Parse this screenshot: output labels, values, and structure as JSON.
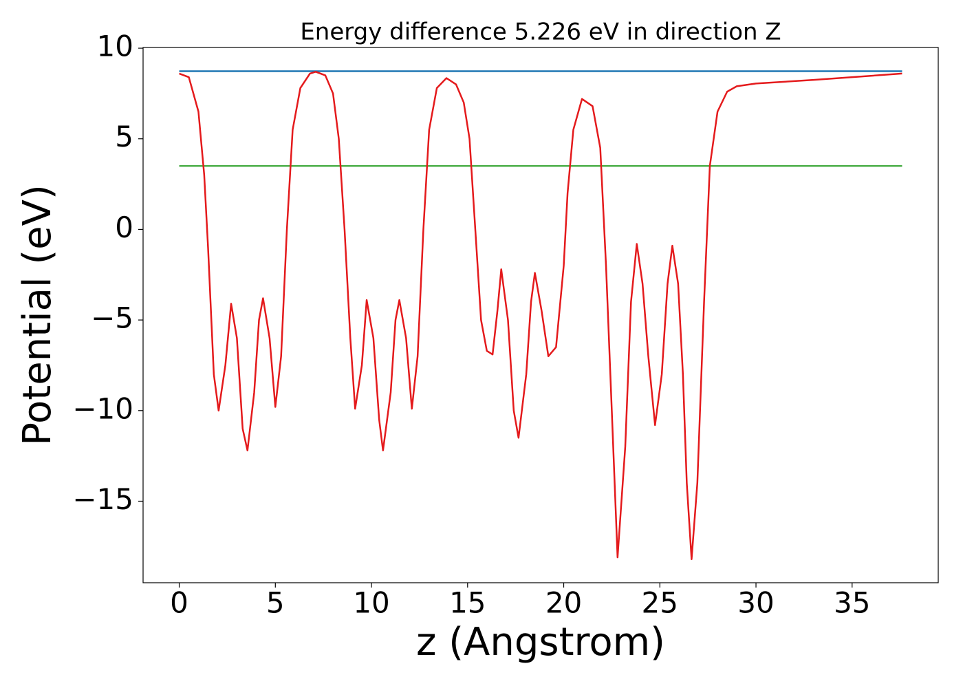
{
  "chart_data": {
    "type": "line",
    "title": "Energy difference 5.226 eV in direction Z",
    "xlabel": "z (Angstrom)",
    "ylabel": "Potential (eV)",
    "xlim": [
      -1.88,
      39.48
    ],
    "ylim": [
      -19.5,
      10.04
    ],
    "xticks": [
      0,
      5,
      10,
      15,
      20,
      25,
      30,
      35
    ],
    "yticks": [
      {
        "value": -15,
        "label": "−15"
      },
      {
        "value": -10,
        "label": "−10"
      },
      {
        "value": -5,
        "label": "−5"
      },
      0,
      5,
      10
    ],
    "grid": false,
    "series": [
      {
        "color": "#1f77b4",
        "x": [
          0,
          37.6
        ],
        "values": [
          8.73,
          8.73
        ]
      },
      {
        "color": "#4daf4a",
        "x": [
          0,
          37.6
        ],
        "values": [
          3.5,
          3.5
        ]
      },
      {
        "color": "#e41a1c",
        "x": [
          0,
          0.5,
          1.0,
          1.3,
          1.5,
          1.8,
          2.05,
          2.4,
          2.7,
          3.0,
          3.3,
          3.55,
          3.9,
          4.15,
          4.36,
          4.7,
          5.0,
          5.3,
          5.6,
          5.9,
          6.3,
          6.8,
          7.1,
          7.6,
          8.0,
          8.3,
          8.6,
          8.9,
          9.15,
          9.5,
          9.75,
          10.1,
          10.4,
          10.6,
          11.0,
          11.25,
          11.45,
          11.8,
          12.1,
          12.4,
          12.7,
          13.0,
          13.4,
          13.9,
          14.4,
          14.8,
          15.1,
          15.4,
          15.7,
          16.0,
          16.3,
          16.55,
          16.75,
          17.1,
          17.4,
          17.65,
          18.05,
          18.3,
          18.5,
          18.85,
          19.2,
          19.6,
          20.0,
          20.2,
          20.5,
          20.95,
          21.5,
          21.9,
          22.2,
          22.5,
          22.8,
          23.2,
          23.5,
          23.8,
          24.1,
          24.4,
          24.75,
          25.1,
          25.4,
          25.65,
          25.95,
          26.2,
          26.4,
          26.65,
          26.95,
          27.3,
          27.6,
          28.0,
          28.5,
          29.0,
          30.0,
          33.0,
          37.6
        ],
        "values": [
          8.6,
          8.4,
          6.5,
          3,
          -1,
          -8,
          -10,
          -7.5,
          -4.1,
          -6,
          -11,
          -12.2,
          -9,
          -5,
          -3.8,
          -6,
          -9.8,
          -7,
          0,
          5.5,
          7.8,
          8.6,
          8.7,
          8.5,
          7.5,
          5,
          0,
          -6,
          -9.9,
          -7.5,
          -3.9,
          -6,
          -10.5,
          -12.2,
          -9,
          -5,
          -3.9,
          -6,
          -9.9,
          -7,
          0,
          5.5,
          7.8,
          8.35,
          8.0,
          7.0,
          5,
          0,
          -5,
          -6.7,
          -6.9,
          -4.5,
          -2.2,
          -5,
          -10,
          -11.5,
          -8,
          -4,
          -2.4,
          -4.5,
          -7.0,
          -6.5,
          -2,
          2,
          5.5,
          7.2,
          6.8,
          4.5,
          -2,
          -10,
          -18.1,
          -12,
          -4,
          -0.8,
          -3,
          -7,
          -10.8,
          -8,
          -3,
          -0.9,
          -3,
          -8,
          -14,
          -18.2,
          -14,
          -4,
          3.5,
          6.5,
          7.6,
          7.9,
          8.05,
          8.25,
          8.6
        ]
      }
    ]
  }
}
